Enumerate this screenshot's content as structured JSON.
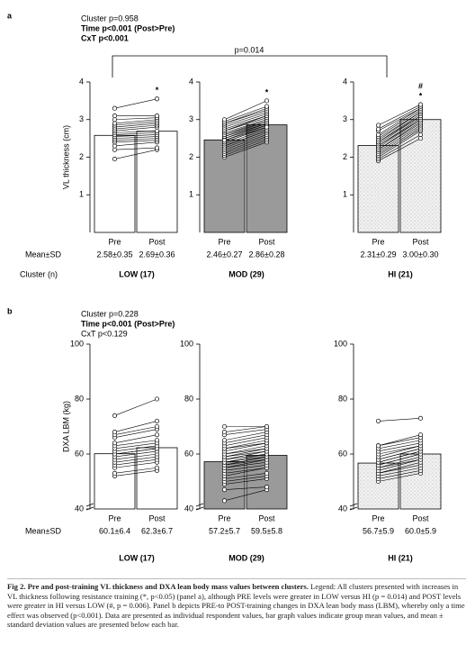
{
  "panels": [
    {
      "label": "a",
      "stats": [
        "Cluster p=0.958",
        "Time p<0.001 (Post>Pre)",
        "CxT p<0.001"
      ],
      "comparison": "p=0.014",
      "mean_label": "Mean±SD",
      "cluster_label": "Cluster (n)"
    },
    {
      "label": "b",
      "stats": [
        "Cluster p=0.228",
        "Time p<0.001 (Post>Pre)",
        "CxT p<0.129"
      ],
      "mean_label": "Mean±SD"
    }
  ],
  "chart_data": [
    {
      "type": "bar",
      "ylabel": "VL thickness (cm)",
      "group": "LOW (17)",
      "categories": [
        "Pre",
        "Post"
      ],
      "values": [
        2.58,
        2.69
      ],
      "value_labels": [
        "2.58±0.35",
        "2.69±0.36"
      ],
      "color": "#ffffff",
      "ylim": [
        0,
        4
      ],
      "yticks": [
        1,
        2,
        3,
        4
      ],
      "post_marks": [
        "*"
      ],
      "individuals": {
        "pre": [
          1.95,
          2.2,
          2.3,
          2.4,
          2.45,
          2.5,
          2.55,
          2.6,
          2.65,
          2.7,
          2.75,
          2.8,
          2.85,
          2.9,
          3.0,
          3.1,
          3.3
        ],
        "post": [
          2.2,
          2.25,
          2.4,
          2.45,
          2.5,
          2.55,
          2.6,
          2.65,
          2.7,
          2.8,
          2.85,
          2.9,
          2.95,
          3.0,
          3.05,
          3.1,
          3.55
        ]
      }
    },
    {
      "type": "bar",
      "group": "MOD (29)",
      "categories": [
        "Pre",
        "Post"
      ],
      "values": [
        2.46,
        2.86
      ],
      "value_labels": [
        "2.46±0.27",
        "2.86±0.28"
      ],
      "color": "#9a9a9a",
      "ylim": [
        0,
        4
      ],
      "yticks": [
        1,
        2,
        3,
        4
      ],
      "post_marks": [
        "*"
      ],
      "individuals": {
        "pre": [
          2.0,
          2.05,
          2.1,
          2.15,
          2.2,
          2.25,
          2.3,
          2.3,
          2.35,
          2.4,
          2.4,
          2.45,
          2.5,
          2.5,
          2.55,
          2.55,
          2.6,
          2.6,
          2.65,
          2.7,
          2.7,
          2.75,
          2.8,
          2.85,
          2.9,
          2.9,
          2.95,
          3.0,
          2.45
        ],
        "post": [
          2.4,
          2.45,
          2.5,
          2.55,
          2.6,
          2.65,
          2.7,
          2.7,
          2.75,
          2.8,
          2.8,
          2.85,
          2.85,
          2.9,
          2.9,
          2.95,
          2.95,
          3.0,
          3.0,
          3.05,
          3.1,
          3.1,
          3.15,
          3.2,
          3.25,
          3.3,
          3.35,
          3.5,
          2.8
        ]
      }
    },
    {
      "type": "bar",
      "group": "HI (21)",
      "categories": [
        "Pre",
        "Post"
      ],
      "values": [
        2.31,
        3.0
      ],
      "value_labels": [
        "2.31±0.29",
        "3.00±0.30"
      ],
      "color": "#ececec",
      "pattern": "dots",
      "ylim": [
        0,
        4
      ],
      "yticks": [
        1,
        2,
        3,
        4
      ],
      "post_marks": [
        "#",
        "*"
      ],
      "individuals": {
        "pre": [
          1.9,
          1.95,
          2.0,
          2.05,
          2.1,
          2.15,
          2.2,
          2.2,
          2.25,
          2.3,
          2.3,
          2.35,
          2.4,
          2.4,
          2.45,
          2.5,
          2.55,
          2.6,
          2.7,
          2.75,
          2.85
        ],
        "post": [
          2.5,
          2.6,
          2.7,
          2.75,
          2.8,
          2.85,
          2.9,
          2.95,
          3.0,
          3.0,
          3.05,
          3.1,
          3.1,
          3.15,
          3.2,
          3.2,
          3.25,
          3.3,
          3.3,
          3.35,
          3.4
        ]
      }
    },
    {
      "type": "bar",
      "ylabel": "DXA LBM (kg)",
      "group": "LOW (17)",
      "categories": [
        "Pre",
        "Post"
      ],
      "values": [
        60.1,
        62.3
      ],
      "value_labels": [
        "60.1±6.4",
        "62.3±6.7"
      ],
      "color": "#ffffff",
      "ylim": [
        40,
        100
      ],
      "yticks": [
        40,
        60,
        80,
        100
      ],
      "axis_break": true,
      "individuals": {
        "pre": [
          52,
          53,
          55,
          56,
          57,
          58,
          59,
          60,
          60,
          61,
          62,
          63,
          64,
          66,
          67,
          68,
          74
        ],
        "post": [
          54,
          55,
          57,
          58,
          59,
          60,
          61,
          62,
          62,
          63,
          64,
          65,
          67,
          69,
          70,
          72,
          80
        ]
      }
    },
    {
      "type": "bar",
      "group": "MOD (29)",
      "categories": [
        "Pre",
        "Post"
      ],
      "values": [
        57.2,
        59.5
      ],
      "value_labels": [
        "57.2±5.7",
        "59.5±5.8"
      ],
      "color": "#9a9a9a",
      "ylim": [
        40,
        100
      ],
      "yticks": [
        40,
        60,
        80,
        100
      ],
      "axis_break": true,
      "individuals": {
        "pre": [
          43,
          47,
          49,
          50,
          51,
          52,
          53,
          54,
          55,
          55,
          56,
          56,
          57,
          57,
          58,
          58,
          59,
          59,
          60,
          60,
          61,
          62,
          62,
          63,
          64,
          65,
          67,
          68,
          70
        ],
        "post": [
          47,
          48,
          51,
          52,
          53,
          55,
          55,
          56,
          57,
          58,
          58,
          59,
          59,
          60,
          60,
          61,
          61,
          62,
          62,
          63,
          64,
          64,
          65,
          66,
          67,
          68,
          69,
          70,
          70
        ]
      }
    },
    {
      "type": "bar",
      "group": "HI (21)",
      "categories": [
        "Pre",
        "Post"
      ],
      "values": [
        56.7,
        60.0
      ],
      "value_labels": [
        "56.7±5.9",
        "60.0±5.9"
      ],
      "color": "#ececec",
      "pattern": "dots",
      "ylim": [
        40,
        100
      ],
      "yticks": [
        40,
        60,
        80,
        100
      ],
      "axis_break": true,
      "individuals": {
        "pre": [
          50,
          51,
          52,
          53,
          53,
          54,
          55,
          55,
          56,
          56,
          57,
          57,
          58,
          58,
          59,
          60,
          61,
          62,
          63,
          63,
          72
        ],
        "post": [
          53,
          54,
          55,
          56,
          57,
          58,
          58,
          59,
          60,
          60,
          61,
          61,
          62,
          62,
          63,
          63,
          64,
          65,
          66,
          67,
          73
        ]
      }
    }
  ],
  "caption": {
    "title": "Fig 2. Pre and post-training VL thickness and DXA lean body mass values between clusters.",
    "text": "Legend: All clusters presented with increases in VL thickness following resistance training (*, p<0.05) (panel a), although PRE levels were greater in LOW versus HI (p = 0.014) and POST levels were greater in HI versus LOW (#, p = 0.006). Panel b depicts PRE-to POST-training changes in DXA lean body mass (LBM), whereby only a time effect was observed (p<0.001). Data are presented as individual respondent values, bar graph values indicate group mean values, and mean ± standard deviation values are presented below each bar."
  }
}
